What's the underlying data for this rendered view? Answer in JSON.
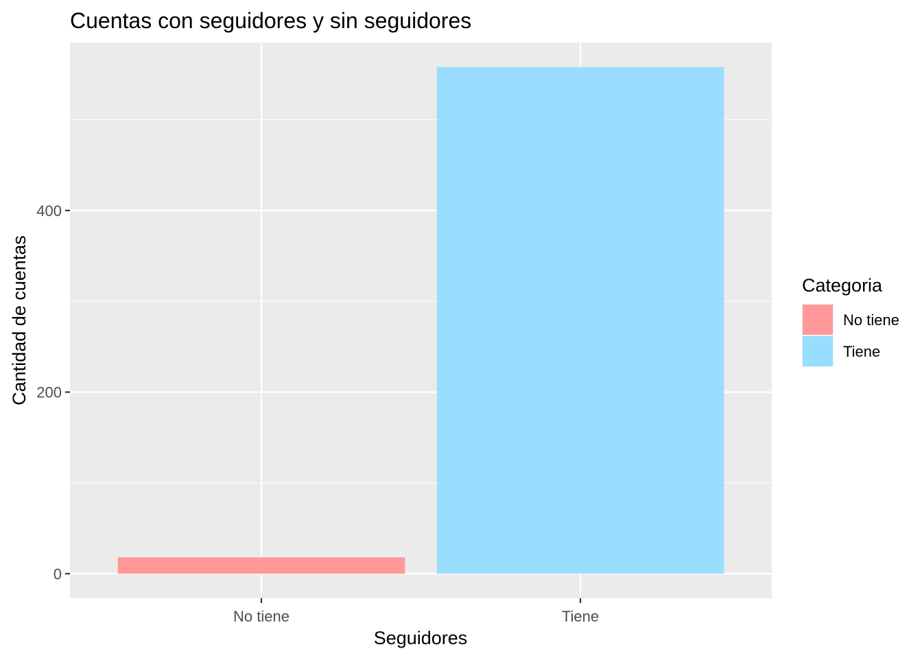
{
  "chart_data": {
    "type": "bar",
    "title": "Cuentas con seguidores y sin seguidores",
    "xlabel": "Seguidores",
    "ylabel": "Cantidad de cuentas",
    "categories": [
      "No tiene",
      "Tiene"
    ],
    "values": [
      18,
      558
    ],
    "colors": [
      "#FF9999",
      "#99DDFF"
    ],
    "ylim": [
      -27,
      585
    ],
    "yticks": [
      0,
      200,
      400
    ],
    "grid": true,
    "background_color": "#EBEBEB",
    "legend": {
      "title": "Categoria",
      "placement": "right",
      "entries": [
        {
          "label": "No tiene",
          "color": "#FF9999"
        },
        {
          "label": "Tiene",
          "color": "#99DDFF"
        }
      ]
    }
  }
}
